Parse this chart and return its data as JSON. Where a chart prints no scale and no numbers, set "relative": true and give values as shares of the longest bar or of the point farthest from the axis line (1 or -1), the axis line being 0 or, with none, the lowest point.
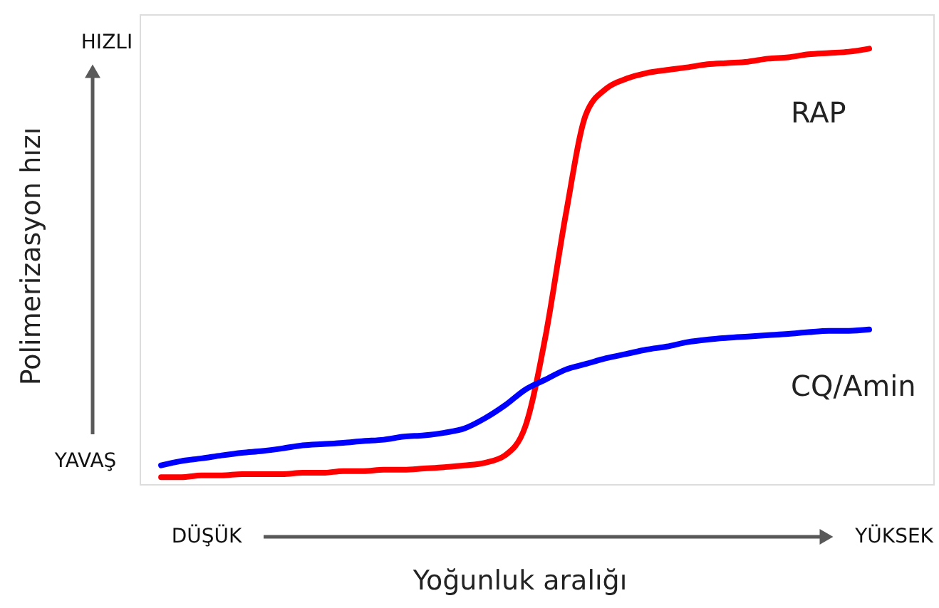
{
  "chart_data": {
    "type": "line",
    "relative": true,
    "xlabel": "Yoğunluk aralığı",
    "ylabel": "Polimerizasyon hızı",
    "categories": [
      null,
      null,
      null,
      null,
      null,
      null,
      null,
      null,
      null,
      null,
      null,
      null,
      null,
      null,
      null,
      null,
      null,
      null,
      null,
      null,
      null,
      null,
      null,
      null,
      null,
      null,
      null,
      null,
      null,
      null,
      null,
      null,
      null,
      null,
      null,
      null
    ],
    "series": [
      {
        "name": "RAP",
        "color": "#ff0000",
        "values": [
          0.016,
          0.016,
          0.02,
          0.02,
          0.023,
          0.023,
          0.023,
          0.026,
          0.026,
          0.03,
          0.03,
          0.033,
          0.033,
          0.036,
          0.039,
          0.043,
          0.049,
          0.066,
          0.132,
          0.339,
          0.618,
          0.849,
          0.908,
          0.931,
          0.944,
          0.951,
          0.957,
          0.964,
          0.967,
          0.97,
          0.977,
          0.98,
          0.987,
          0.99,
          0.993,
          1
        ]
      },
      {
        "name": "CQ/Amin",
        "color": "#0000ff",
        "values": [
          0.043,
          0.053,
          0.059,
          0.066,
          0.072,
          0.076,
          0.082,
          0.089,
          0.092,
          0.095,
          0.099,
          0.102,
          0.109,
          0.112,
          0.118,
          0.128,
          0.151,
          0.181,
          0.217,
          0.24,
          0.263,
          0.276,
          0.289,
          0.299,
          0.309,
          0.316,
          0.326,
          0.332,
          0.336,
          0.339,
          0.342,
          0.345,
          0.349,
          0.352,
          0.352,
          0.355
        ]
      }
    ],
    "annotations": [
      "HIZLI",
      "YAVAŞ",
      "DÜŞÜK",
      "YÜKSEK"
    ],
    "marker": "none",
    "line_style": "solid"
  }
}
